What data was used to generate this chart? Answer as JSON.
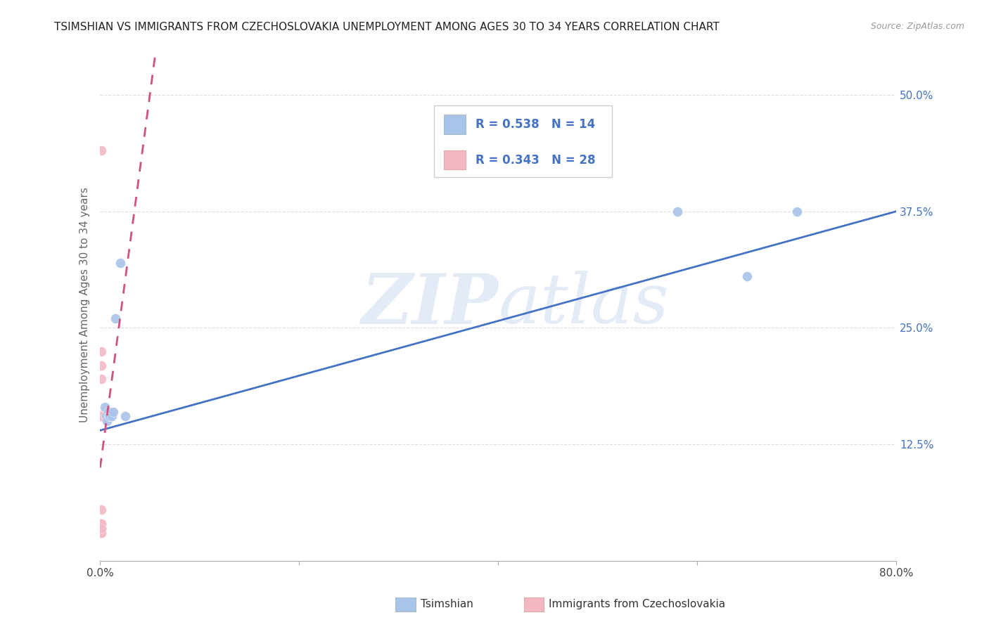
{
  "title": "TSIMSHIAN VS IMMIGRANTS FROM CZECHOSLOVAKIA UNEMPLOYMENT AMONG AGES 30 TO 34 YEARS CORRELATION CHART",
  "source": "Source: ZipAtlas.com",
  "ylabel": "Unemployment Among Ages 30 to 34 years",
  "xlim": [
    0.0,
    0.8
  ],
  "ylim": [
    0.0,
    0.55
  ],
  "xticks": [
    0.0,
    0.2,
    0.4,
    0.6,
    0.8
  ],
  "xtick_labels": [
    "0.0%",
    "",
    "",
    "",
    "80.0%"
  ],
  "ytick_labels": [
    "",
    "12.5%",
    "25.0%",
    "37.5%",
    "50.0%"
  ],
  "yticks": [
    0.0,
    0.125,
    0.25,
    0.375,
    0.5
  ],
  "watermark": "ZIPatlas",
  "blue_R": "R = 0.538",
  "blue_N": "N = 14",
  "pink_R": "R = 0.343",
  "pink_N": "N = 28",
  "legend_label_blue": "Tsimshian",
  "legend_label_pink": "Immigrants from Czechoslovakia",
  "blue_color": "#A8C4E8",
  "pink_color": "#F4B8C4",
  "blue_line_color": "#4472C4",
  "pink_line_color": "#D05080",
  "blue_scatter_x": [
    0.005,
    0.006,
    0.007,
    0.008,
    0.009,
    0.01,
    0.012,
    0.013,
    0.015,
    0.02,
    0.025,
    0.58,
    0.65,
    0.7
  ],
  "blue_scatter_y": [
    0.165,
    0.155,
    0.15,
    0.16,
    0.155,
    0.155,
    0.155,
    0.16,
    0.26,
    0.32,
    0.155,
    0.375,
    0.305,
    0.375
  ],
  "pink_scatter_x": [
    0.001,
    0.001,
    0.001,
    0.001,
    0.001,
    0.001,
    0.001,
    0.001,
    0.001,
    0.001,
    0.001,
    0.001,
    0.001,
    0.001,
    0.001,
    0.001,
    0.001,
    0.001,
    0.001,
    0.001,
    0.001,
    0.001,
    0.001,
    0.001,
    0.001,
    0.005,
    0.01,
    0.001
  ],
  "pink_scatter_y": [
    0.44,
    0.055,
    0.04,
    0.035,
    0.04,
    0.035,
    0.04,
    0.035,
    0.03,
    0.195,
    0.21,
    0.225,
    0.03,
    0.04,
    0.035,
    0.035,
    0.04,
    0.04,
    0.035,
    0.04,
    0.035,
    0.03,
    0.04,
    0.04,
    0.035,
    0.16,
    0.16,
    0.155
  ],
  "blue_trend_x": [
    0.0,
    0.8
  ],
  "blue_trend_y": [
    0.14,
    0.375
  ],
  "pink_trend_x": [
    0.0,
    0.055
  ],
  "pink_trend_y": [
    0.1,
    0.54
  ],
  "background_color": "#FFFFFF",
  "grid_color": "#DDDDDD",
  "title_fontsize": 11,
  "axis_label_fontsize": 11,
  "tick_fontsize": 11,
  "marker_size": 100
}
